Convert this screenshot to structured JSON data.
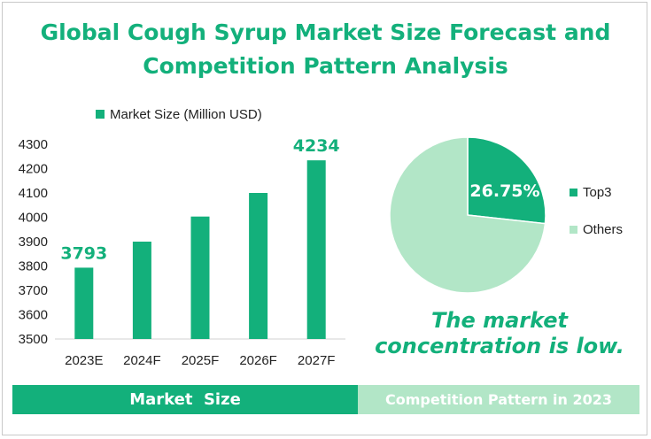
{
  "title": {
    "line1": "Global Cough Syrup Market Size Forecast and",
    "line2": "Competition Pattern Analysis"
  },
  "colors": {
    "accent": "#13b07b",
    "accent_light": "#b2e6c7",
    "text": "#222222"
  },
  "chart_data": [
    {
      "type": "bar",
      "title": "",
      "legend": "Market Size (Million USD)",
      "categories": [
        "2023E",
        "2024F",
        "2025F",
        "2026F",
        "2027F"
      ],
      "values": [
        3793,
        3900,
        4003,
        4100,
        4234
      ],
      "data_labels": {
        "2023E": "3793",
        "2027F": "4234"
      },
      "ylim": [
        3500,
        4300
      ],
      "yticks": [
        3500,
        3600,
        3700,
        3800,
        3900,
        4000,
        4100,
        4200,
        4300
      ],
      "xlabel": "",
      "ylabel": "",
      "grid": false,
      "legend_position": "top"
    },
    {
      "type": "pie",
      "labels": [
        "Top3",
        "Others"
      ],
      "values": [
        26.75,
        73.25
      ],
      "data_label": "26.75%",
      "legend_position": "right"
    }
  ],
  "note": "The market concentration is low.",
  "bands": {
    "left": "Market  Size",
    "right": "Competition Pattern in 2023"
  }
}
